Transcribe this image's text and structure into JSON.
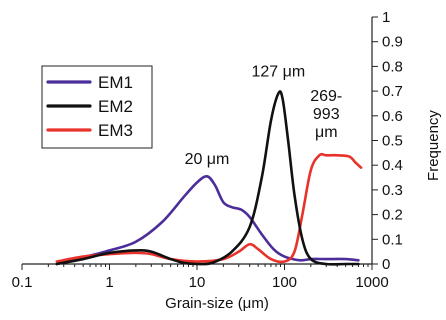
{
  "chart_data": {
    "type": "line",
    "xlabel": "Grain-size (μm)",
    "ylabel": "Frequency",
    "x_scale": "log",
    "xlim": [
      0.1,
      1000
    ],
    "ylim": [
      0,
      1
    ],
    "x_ticks": [
      0.1,
      1,
      10,
      100,
      1000
    ],
    "x_tick_labels": [
      "0.1",
      "1",
      "10",
      "100",
      "1000"
    ],
    "y_ticks": [
      0,
      0.1,
      0.2,
      0.3,
      0.4,
      0.5,
      0.6,
      0.7,
      0.8,
      0.9,
      1
    ],
    "y_tick_labels": [
      "0",
      "0.1",
      "0.2",
      "0.3",
      "0.4",
      "0.5",
      "0.6",
      "0.7",
      "0.8",
      "0.9",
      "1"
    ],
    "y_axis_side": "right",
    "legend_position": "top-left",
    "legend_box": true,
    "series": [
      {
        "name": "EM1",
        "color": "#4b2e9a",
        "points": [
          [
            0.25,
            0.0
          ],
          [
            0.4,
            0.02
          ],
          [
            0.7,
            0.04
          ],
          [
            1,
            0.055
          ],
          [
            2,
            0.09
          ],
          [
            4,
            0.17
          ],
          [
            7,
            0.27
          ],
          [
            10,
            0.33
          ],
          [
            13,
            0.355
          ],
          [
            16,
            0.32
          ],
          [
            20,
            0.25
          ],
          [
            25,
            0.23
          ],
          [
            32,
            0.22
          ],
          [
            40,
            0.19
          ],
          [
            55,
            0.12
          ],
          [
            75,
            0.06
          ],
          [
            100,
            0.03
          ],
          [
            150,
            0.015
          ],
          [
            200,
            0.02
          ],
          [
            300,
            0.02
          ],
          [
            500,
            0.02
          ],
          [
            700,
            0.015
          ]
        ]
      },
      {
        "name": "EM2",
        "color": "#111111",
        "points": [
          [
            0.25,
            0.0
          ],
          [
            0.5,
            0.02
          ],
          [
            1,
            0.045
          ],
          [
            2,
            0.055
          ],
          [
            3,
            0.05
          ],
          [
            5,
            0.02
          ],
          [
            7,
            0.005
          ],
          [
            10,
            0.0
          ],
          [
            15,
            0.005
          ],
          [
            25,
            0.05
          ],
          [
            40,
            0.15
          ],
          [
            55,
            0.35
          ],
          [
            70,
            0.58
          ],
          [
            85,
            0.69
          ],
          [
            95,
            0.67
          ],
          [
            110,
            0.5
          ],
          [
            130,
            0.28
          ],
          [
            160,
            0.1
          ],
          [
            200,
            0.02
          ],
          [
            300,
            0.0
          ],
          [
            500,
            0.0
          ],
          [
            700,
            0.0
          ]
        ]
      },
      {
        "name": "EM3",
        "color": "#e8322a",
        "points": [
          [
            0.25,
            0.01
          ],
          [
            0.5,
            0.03
          ],
          [
            1,
            0.04
          ],
          [
            2,
            0.045
          ],
          [
            3,
            0.04
          ],
          [
            5,
            0.02
          ],
          [
            10,
            0.01
          ],
          [
            20,
            0.02
          ],
          [
            30,
            0.05
          ],
          [
            40,
            0.08
          ],
          [
            50,
            0.06
          ],
          [
            70,
            0.02
          ],
          [
            100,
            0.01
          ],
          [
            130,
            0.05
          ],
          [
            160,
            0.2
          ],
          [
            200,
            0.38
          ],
          [
            250,
            0.44
          ],
          [
            300,
            0.44
          ],
          [
            400,
            0.44
          ],
          [
            550,
            0.435
          ],
          [
            650,
            0.41
          ],
          [
            750,
            0.39
          ]
        ]
      }
    ],
    "annotations": [
      {
        "id": "a20",
        "lines": [
          "20 μm"
        ],
        "x": 13,
        "y": 0.405
      },
      {
        "id": "a127",
        "lines": [
          "127 μm"
        ],
        "x": 85,
        "y": 0.76
      },
      {
        "id": "a269",
        "lines": [
          "269-",
          "993",
          "μm"
        ],
        "x": 300,
        "y": 0.66
      }
    ]
  }
}
